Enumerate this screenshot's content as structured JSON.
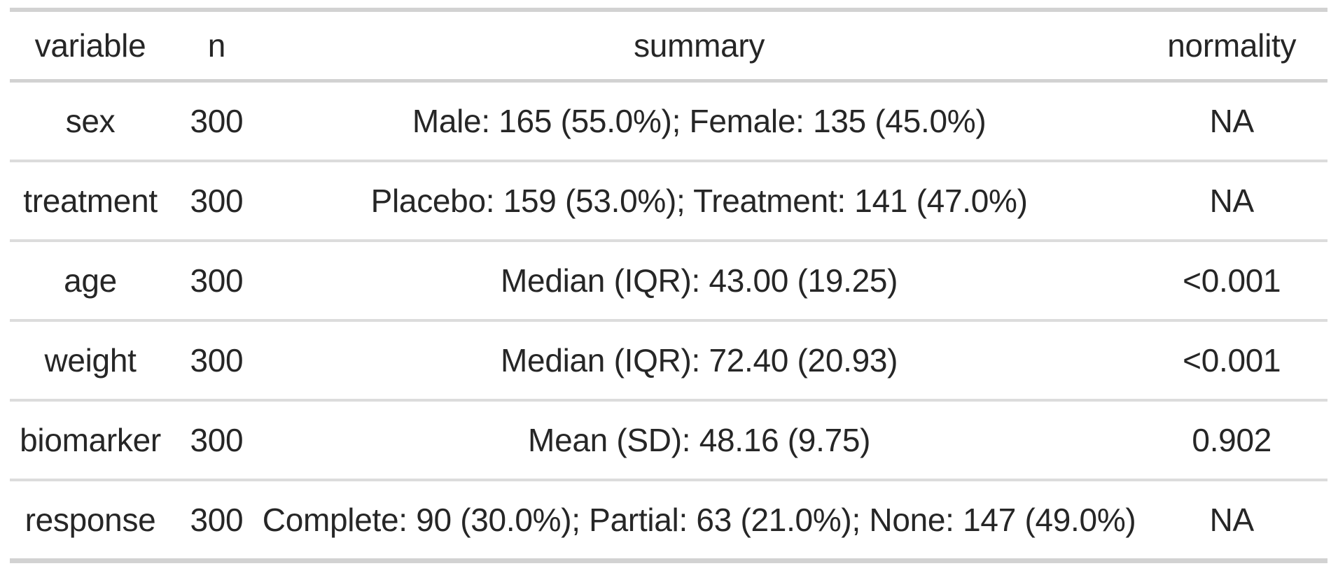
{
  "colors": {
    "background": "#ffffff",
    "text": "#262626",
    "border_heavy": "#d2d2d2",
    "border_light": "#dcdcdc"
  },
  "chart_data": {
    "type": "table",
    "columns": [
      {
        "id": "variable",
        "label": "variable"
      },
      {
        "id": "n",
        "label": "n"
      },
      {
        "id": "summary",
        "label": "summary"
      },
      {
        "id": "normality",
        "label": "normality"
      }
    ],
    "rows": [
      {
        "variable": "sex",
        "n": "300",
        "summary": "Male: 165 (55.0%); Female: 135 (45.0%)",
        "normality": "NA"
      },
      {
        "variable": "treatment",
        "n": "300",
        "summary": "Placebo: 159 (53.0%); Treatment: 141 (47.0%)",
        "normality": "NA"
      },
      {
        "variable": "age",
        "n": "300",
        "summary": "Median (IQR): 43.00 (19.25)",
        "normality": "<0.001"
      },
      {
        "variable": "weight",
        "n": "300",
        "summary": "Median (IQR): 72.40 (20.93)",
        "normality": "<0.001"
      },
      {
        "variable": "biomarker",
        "n": "300",
        "summary": "Mean (SD): 48.16 (9.75)",
        "normality": "0.902"
      },
      {
        "variable": "response",
        "n": "300",
        "summary": "Complete: 90 (30.0%); Partial: 63 (21.0%); None: 147 (49.0%)",
        "normality": "NA"
      }
    ]
  }
}
